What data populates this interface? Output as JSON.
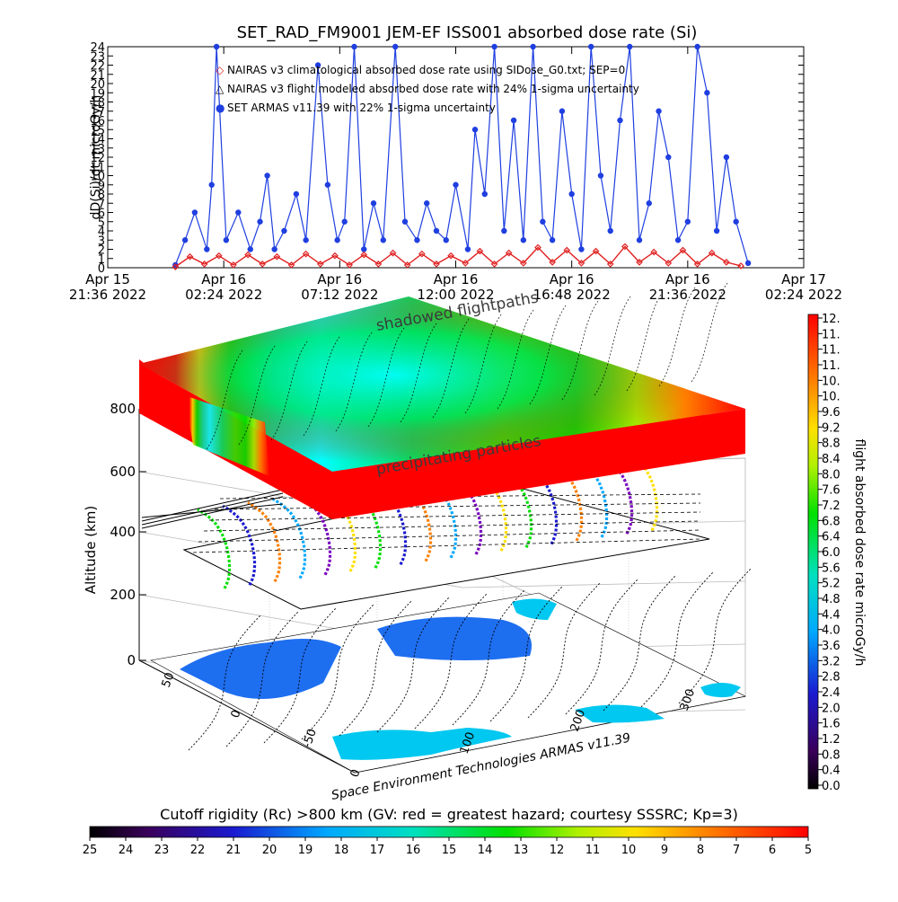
{
  "chart_data": [
    {
      "type": "line",
      "title": "SET_RAD_FM9001  JEM-EF ISS001 absorbed dose rate (Si)",
      "ylabel": "dD(Si)/dt microGy/h",
      "ylim": [
        0,
        24
      ],
      "yticks": [
        "0",
        "1",
        "2",
        "3",
        "4",
        "5",
        "6",
        "7",
        "8",
        "9",
        "10",
        "11",
        "12",
        "13",
        "14",
        "15",
        "16",
        "17",
        "18",
        "19",
        "20",
        "21",
        "22",
        "23",
        "24"
      ],
      "xticks": [
        {
          "line1": "Apr 15",
          "line2": "21:36 2022"
        },
        {
          "line1": "Apr 16",
          "line2": "02:24 2022"
        },
        {
          "line1": "Apr 16",
          "line2": "07:12 2022"
        },
        {
          "line1": "Apr 16",
          "line2": "12:00 2022"
        },
        {
          "line1": "Apr 16",
          "line2": "16:48 2022"
        },
        {
          "line1": "Apr 16",
          "line2": "21:36 2022"
        },
        {
          "line1": "Apr 17",
          "line2": "02:24 2022"
        }
      ],
      "xhours": [
        0,
        4.8,
        9.6,
        14.4,
        19.2,
        24,
        28.8
      ],
      "legend": [
        {
          "symbol": "◇",
          "color": "#e02020",
          "label": "NAIRAS v3 climatological absorbed dose rate using SIDose_G0.txt; SEP=0"
        },
        {
          "symbol": "△",
          "color": "#000000",
          "label": "NAIRAS v3 flight modeled absorbed dose rate with 24% 1-sigma uncertainty"
        },
        {
          "symbol": "●",
          "color": "#1f3fe0",
          "label": "SET ARMAS v11.39 with 22% 1-sigma uncertainty"
        }
      ],
      "series": [
        {
          "name": "SET ARMAS v11.39",
          "color": "#1f3fe0",
          "x_hours": [
            2.8,
            3.2,
            3.6,
            4.1,
            4.3,
            4.5,
            4.9,
            5.4,
            5.9,
            6.3,
            6.6,
            6.9,
            7.3,
            7.8,
            8.2,
            8.7,
            9.1,
            9.5,
            9.8,
            10.2,
            10.6,
            11.0,
            11.4,
            11.9,
            12.3,
            12.8,
            13.2,
            13.6,
            14.0,
            14.4,
            14.9,
            15.2,
            15.6,
            16.0,
            16.4,
            16.8,
            17.2,
            17.6,
            18.0,
            18.4,
            18.8,
            19.2,
            19.6,
            20.0,
            20.4,
            20.8,
            21.2,
            21.6,
            22.0,
            22.4,
            22.8,
            23.2,
            23.6,
            24.0,
            24.4,
            24.8,
            25.2,
            25.6,
            26.0,
            26.5
          ],
          "values": [
            0.3,
            3,
            6,
            2,
            9,
            24,
            3,
            6,
            2,
            5,
            10,
            2,
            4,
            8,
            3,
            22,
            9,
            3,
            5,
            24,
            2,
            7,
            3,
            24,
            5,
            3,
            7,
            4,
            3,
            9,
            2,
            15,
            8,
            24,
            4,
            16,
            3,
            24,
            5,
            3,
            17,
            8,
            2,
            24,
            10,
            4,
            16,
            24,
            3,
            7,
            17,
            12,
            3,
            5,
            24,
            19,
            4,
            12,
            5,
            0.5
          ]
        },
        {
          "name": "NAIRAS v3 climatological absorbed dose rate",
          "color": "#e02020",
          "x_hours": [
            2.8,
            3.4,
            4.0,
            4.6,
            5.2,
            5.8,
            6.4,
            7.0,
            7.6,
            8.2,
            8.8,
            9.4,
            10.0,
            10.6,
            11.2,
            11.8,
            12.4,
            13.0,
            13.6,
            14.2,
            14.8,
            15.4,
            16.0,
            16.6,
            17.2,
            17.8,
            18.4,
            19.0,
            19.6,
            20.2,
            20.8,
            21.4,
            22.0,
            22.6,
            23.2,
            23.8,
            24.4,
            25.0,
            25.6,
            26.2
          ],
          "values": [
            0.1,
            1.2,
            0.4,
            1.3,
            0.3,
            1.4,
            0.4,
            1.2,
            0.3,
            1.5,
            0.4,
            1.3,
            0.3,
            1.4,
            0.4,
            1.6,
            0.3,
            1.5,
            0.4,
            1.3,
            0.5,
            1.8,
            0.4,
            1.6,
            0.5,
            2.2,
            0.6,
            1.9,
            0.5,
            1.8,
            0.4,
            2.3,
            0.6,
            1.7,
            0.5,
            1.9,
            0.4,
            1.6,
            0.6,
            0.2
          ]
        }
      ]
    },
    {
      "type": "heatmap",
      "title": "",
      "zlabel": "Altitude (km)",
      "zticks": [
        "0",
        "200",
        "400",
        "600",
        "800"
      ],
      "lat_ticks": [
        "50",
        "0",
        "-50"
      ],
      "lon_ticks": [
        "0",
        "100",
        "200",
        "300"
      ],
      "labels": {
        "top_layer": "shadowed flightpaths",
        "layer_note": "precipitating particles",
        "credit": "Space Environment Technologies ARMAS v11.39"
      },
      "colorbar_right": {
        "label": "flight absorbed dose rate microGy/h",
        "ticks": [
          "12.",
          "11.",
          "11.",
          "11.",
          "10.",
          "10.",
          "9.6",
          "9.2",
          "8.8",
          "8.4",
          "8.0",
          "7.6",
          "7.2",
          "6.8",
          "6.4",
          "6.0",
          "5.6",
          "5.2",
          "4.8",
          "4.4",
          "4.0",
          "3.6",
          "3.2",
          "2.8",
          "2.4",
          "2.0",
          "1.6",
          "1.2",
          "0.8",
          "0.4",
          "0.0"
        ]
      },
      "colorbar_bottom": {
        "label": "Cutoff rigidity (Rc) >800 km (GV: red = greatest hazard; courtesy SSSRC; Kp=3)",
        "ticks": [
          "25",
          "24",
          "23",
          "22",
          "21",
          "20",
          "19",
          "18",
          "17",
          "16",
          "15",
          "14",
          "13",
          "12",
          "11",
          "10",
          "9",
          "8",
          "7",
          "6",
          "5"
        ]
      },
      "colors": {
        "high": "#ff0000",
        "mid": "#00ff40",
        "low": "#00ffff",
        "track": "#000000"
      }
    }
  ]
}
